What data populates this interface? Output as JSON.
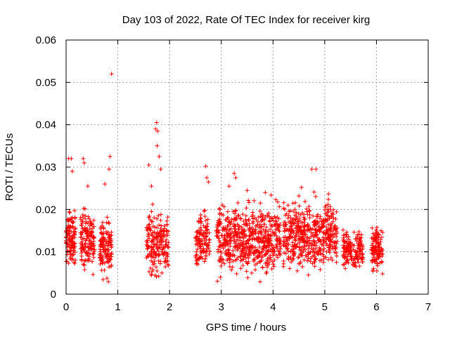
{
  "chart_data": {
    "type": "scatter",
    "title": "Day 103 of 2022, Rate Of TEC Index for receiver kirg",
    "xlabel": "GPS time / hours",
    "ylabel": "ROTI / TECUs",
    "xlim": [
      0,
      7
    ],
    "ylim": [
      0,
      0.06
    ],
    "xticks": [
      "0",
      "1",
      "2",
      "3",
      "4",
      "5",
      "6",
      "7"
    ],
    "yticks": [
      "0",
      "0.01",
      "0.02",
      "0.03",
      "0.04",
      "0.05",
      "0.06"
    ],
    "grid": true,
    "marker": "plus",
    "color": "#ff0000",
    "clusters": [
      {
        "x_start": 0.0,
        "x_end": 0.18,
        "y_min": 0.004,
        "y_max": 0.022,
        "count": 120
      },
      {
        "x_start": 0.28,
        "x_end": 0.55,
        "y_min": 0.003,
        "y_max": 0.022,
        "count": 150
      },
      {
        "x_start": 0.65,
        "x_end": 0.88,
        "y_min": 0.002,
        "y_max": 0.02,
        "count": 130
      },
      {
        "x_start": 1.55,
        "x_end": 1.98,
        "y_min": 0.002,
        "y_max": 0.022,
        "count": 200
      },
      {
        "x_start": 2.5,
        "x_end": 2.78,
        "y_min": 0.004,
        "y_max": 0.022,
        "count": 120
      },
      {
        "x_start": 2.9,
        "x_end": 4.15,
        "y_min": 0.002,
        "y_max": 0.024,
        "count": 600
      },
      {
        "x_start": 4.2,
        "x_end": 5.25,
        "y_min": 0.003,
        "y_max": 0.025,
        "count": 500
      },
      {
        "x_start": 5.35,
        "x_end": 5.75,
        "y_min": 0.004,
        "y_max": 0.017,
        "count": 160
      },
      {
        "x_start": 5.9,
        "x_end": 6.12,
        "y_min": 0.003,
        "y_max": 0.018,
        "count": 110
      }
    ],
    "notable_points": [
      {
        "x": 0.88,
        "y": 0.052
      },
      {
        "x": 0.05,
        "y": 0.032
      },
      {
        "x": 0.1,
        "y": 0.032
      },
      {
        "x": 0.12,
        "y": 0.029
      },
      {
        "x": 0.33,
        "y": 0.032
      },
      {
        "x": 0.35,
        "y": 0.031
      },
      {
        "x": 0.42,
        "y": 0.0255
      },
      {
        "x": 0.85,
        "y": 0.0325
      },
      {
        "x": 0.83,
        "y": 0.0295
      },
      {
        "x": 0.75,
        "y": 0.026
      },
      {
        "x": 1.6,
        "y": 0.0305
      },
      {
        "x": 1.75,
        "y": 0.0405
      },
      {
        "x": 1.73,
        "y": 0.039
      },
      {
        "x": 1.77,
        "y": 0.0385
      },
      {
        "x": 1.76,
        "y": 0.035
      },
      {
        "x": 1.8,
        "y": 0.0325
      },
      {
        "x": 1.83,
        "y": 0.0295
      },
      {
        "x": 1.65,
        "y": 0.0255
      },
      {
        "x": 2.7,
        "y": 0.0302
      },
      {
        "x": 2.72,
        "y": 0.0275
      },
      {
        "x": 2.75,
        "y": 0.0265
      },
      {
        "x": 3.25,
        "y": 0.0285
      },
      {
        "x": 3.28,
        "y": 0.0275
      },
      {
        "x": 3.15,
        "y": 0.0255
      },
      {
        "x": 3.5,
        "y": 0.0245
      },
      {
        "x": 3.85,
        "y": 0.024
      },
      {
        "x": 4.75,
        "y": 0.0295
      },
      {
        "x": 4.83,
        "y": 0.0295
      },
      {
        "x": 4.55,
        "y": 0.0252
      },
      {
        "x": 4.5,
        "y": 0.0232
      }
    ]
  }
}
